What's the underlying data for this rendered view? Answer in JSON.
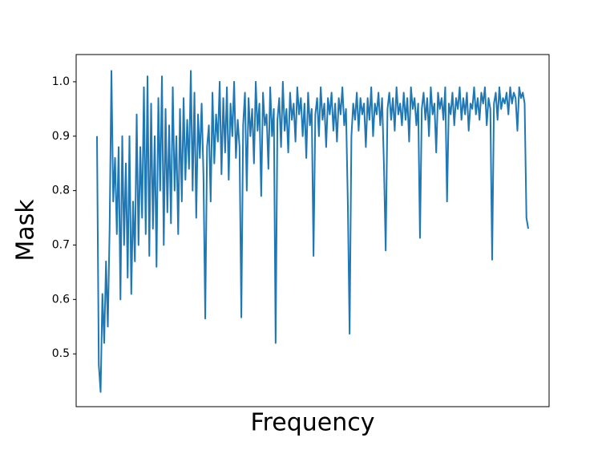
{
  "chart_data": {
    "type": "line",
    "x_label": "Frequency",
    "y_label": "Mask",
    "color": "#1f77b4",
    "values": [
      0.9,
      0.48,
      0.43,
      0.61,
      0.52,
      0.67,
      0.55,
      0.73,
      1.02,
      0.78,
      0.86,
      0.72,
      0.88,
      0.6,
      0.9,
      0.7,
      0.85,
      0.64,
      0.9,
      0.61,
      0.78,
      0.67,
      0.94,
      0.7,
      0.88,
      0.75,
      0.99,
      0.72,
      1.01,
      0.68,
      0.96,
      0.73,
      0.9,
      0.66,
      0.97,
      0.8,
      1.01,
      0.7,
      0.95,
      0.76,
      0.92,
      0.74,
      0.99,
      0.8,
      0.9,
      0.72,
      0.95,
      0.78,
      0.97,
      0.82,
      0.93,
      0.84,
      1.02,
      0.8,
      0.98,
      0.75,
      0.94,
      0.86,
      0.96,
      0.83,
      0.565,
      0.88,
      0.92,
      0.78,
      0.98,
      0.85,
      0.94,
      0.89,
      1.0,
      0.83,
      0.97,
      0.87,
      0.99,
      0.82,
      0.96,
      0.9,
      1.0,
      0.86,
      0.93,
      0.88,
      0.567,
      0.92,
      0.98,
      0.8,
      0.97,
      0.9,
      0.95,
      0.85,
      1.0,
      0.91,
      0.96,
      0.79,
      0.98,
      0.92,
      0.94,
      0.84,
      0.99,
      0.9,
      0.95,
      0.52,
      0.93,
      0.97,
      0.88,
      1.0,
      0.91,
      0.95,
      0.87,
      0.98,
      0.93,
      0.96,
      0.89,
      0.99,
      0.94,
      0.97,
      0.9,
      0.96,
      0.86,
      0.98,
      0.92,
      0.95,
      0.68,
      0.94,
      0.97,
      0.9,
      0.99,
      0.93,
      0.96,
      0.88,
      0.97,
      0.94,
      0.98,
      0.91,
      0.96,
      0.89,
      0.97,
      0.94,
      0.99,
      0.92,
      0.95,
      0.78,
      0.537,
      0.9,
      0.96,
      0.93,
      0.98,
      0.91,
      0.97,
      0.94,
      0.96,
      0.88,
      0.97,
      0.93,
      0.99,
      0.9,
      0.96,
      0.94,
      0.98,
      0.92,
      0.97,
      0.85,
      0.69,
      0.95,
      0.98,
      0.93,
      0.97,
      0.91,
      0.99,
      0.94,
      0.96,
      0.92,
      0.98,
      0.93,
      0.97,
      0.89,
      0.99,
      0.95,
      0.97,
      0.92,
      0.96,
      0.713,
      0.95,
      0.98,
      0.93,
      0.97,
      0.9,
      0.99,
      0.94,
      0.96,
      0.87,
      0.98,
      0.95,
      0.97,
      0.93,
      0.99,
      0.78,
      0.96,
      0.94,
      0.98,
      0.92,
      0.97,
      0.95,
      0.99,
      0.93,
      0.97,
      0.94,
      0.98,
      0.91,
      0.96,
      0.95,
      0.99,
      0.94,
      0.97,
      0.93,
      0.98,
      0.96,
      0.99,
      0.92,
      0.97,
      0.95,
      0.673,
      0.96,
      0.98,
      0.93,
      0.99,
      0.95,
      0.97,
      0.96,
      0.98,
      0.94,
      0.99,
      0.96,
      0.98,
      0.97,
      0.91,
      0.99,
      0.97,
      0.98,
      0.96,
      0.75,
      0.73
    ],
    "ylim": [
      0.403,
      1.05
    ],
    "yticks": [
      0.5,
      0.6,
      0.7,
      0.8,
      0.9,
      {
        "value": 1,
        "label": "1.0"
      }
    ]
  }
}
